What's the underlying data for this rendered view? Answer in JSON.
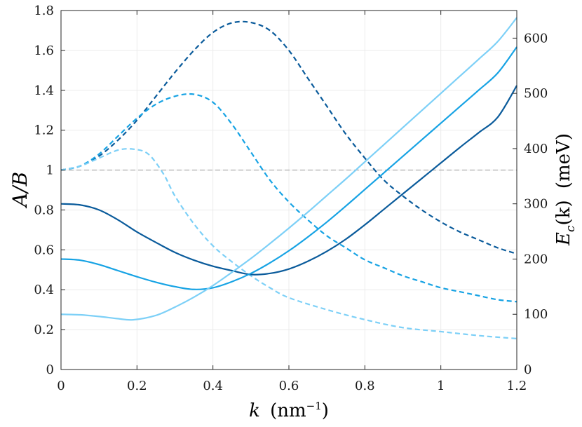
{
  "chart_data": {
    "type": "line",
    "xlabel_var": "k",
    "xlabel_unit_base": "(nm",
    "xlabel_unit_exp": "−1",
    "xlabel_unit_close": ")",
    "ylabel_left": "A/B",
    "ylabel_right_var": "E",
    "ylabel_right_sub": "c",
    "ylabel_right_rest": "(k)",
    "ylabel_right_unit": "(meV)",
    "xlim": [
      0,
      1.2
    ],
    "ylim_left": [
      0,
      1.8
    ],
    "ylim_right": [
      0,
      650
    ],
    "x_ticks": [
      0,
      0.2,
      0.4,
      0.6,
      0.8,
      1,
      1.2
    ],
    "x_tick_labels": [
      "0",
      "0.2",
      "0.4",
      "0.6",
      "0.8",
      "1",
      "1.2"
    ],
    "y_left_ticks": [
      0,
      0.2,
      0.4,
      0.6,
      0.8,
      1,
      1.2,
      1.4,
      1.6,
      1.8
    ],
    "y_left_tick_labels": [
      "0",
      "0.2",
      "0.4",
      "0.6",
      "0.8",
      "1",
      "1.2",
      "1.4",
      "1.6",
      "1.8"
    ],
    "y_right_ticks": [
      0,
      100,
      200,
      300,
      400,
      500,
      600
    ],
    "y_right_tick_labels": [
      "0",
      "100",
      "200",
      "300",
      "400",
      "500",
      "600"
    ],
    "grid": true,
    "reference_line": {
      "axis": "left",
      "y": 1.0,
      "color": "#b3b3b3",
      "style": "dashed"
    },
    "series": [
      {
        "axis": "left",
        "style": "dashed",
        "color": "#0a5b9b",
        "x": [
          0,
          0.05,
          0.1,
          0.15,
          0.2,
          0.25,
          0.3,
          0.35,
          0.4,
          0.45,
          0.5,
          0.55,
          0.6,
          0.65,
          0.7,
          0.75,
          0.8,
          0.85,
          0.9,
          0.95,
          1.0,
          1.05,
          1.1,
          1.15,
          1.2
        ],
        "y": [
          1.0,
          1.02,
          1.07,
          1.15,
          1.25,
          1.37,
          1.49,
          1.6,
          1.69,
          1.738,
          1.74,
          1.7,
          1.6,
          1.46,
          1.32,
          1.18,
          1.06,
          0.95,
          0.87,
          0.8,
          0.74,
          0.69,
          0.65,
          0.61,
          0.58
        ]
      },
      {
        "axis": "left",
        "style": "dashed",
        "color": "#17a3e4",
        "x": [
          0,
          0.05,
          0.1,
          0.15,
          0.2,
          0.25,
          0.3,
          0.35,
          0.4,
          0.45,
          0.5,
          0.55,
          0.6,
          0.65,
          0.7,
          0.75,
          0.8,
          0.85,
          0.9,
          0.95,
          1.0,
          1.05,
          1.1,
          1.15,
          1.2
        ],
        "y": [
          1.0,
          1.02,
          1.08,
          1.17,
          1.26,
          1.33,
          1.37,
          1.38,
          1.34,
          1.23,
          1.09,
          0.95,
          0.84,
          0.75,
          0.67,
          0.61,
          0.55,
          0.51,
          0.47,
          0.44,
          0.41,
          0.39,
          0.37,
          0.35,
          0.34
        ]
      },
      {
        "axis": "left",
        "style": "dashed",
        "color": "#7dd0f7",
        "x": [
          0,
          0.05,
          0.1,
          0.15,
          0.19,
          0.23,
          0.27,
          0.3,
          0.35,
          0.4,
          0.45,
          0.5,
          0.55,
          0.6,
          0.7,
          0.8,
          0.9,
          1.0,
          1.1,
          1.2
        ],
        "y": [
          1.0,
          1.02,
          1.06,
          1.1,
          1.105,
          1.08,
          0.98,
          0.87,
          0.73,
          0.62,
          0.54,
          0.47,
          0.41,
          0.36,
          0.3,
          0.25,
          0.21,
          0.19,
          0.17,
          0.155
        ]
      },
      {
        "axis": "right",
        "style": "solid",
        "color": "#0a5b9b",
        "x": [
          0,
          0.05,
          0.1,
          0.15,
          0.2,
          0.25,
          0.3,
          0.35,
          0.4,
          0.45,
          0.5,
          0.55,
          0.6,
          0.65,
          0.7,
          0.75,
          0.8,
          0.85,
          0.9,
          0.95,
          1.0,
          1.05,
          1.1,
          1.15,
          1.2
        ],
        "y": [
          300,
          298,
          289,
          271,
          249,
          230,
          212,
          198,
          187,
          179,
          172,
          174,
          182,
          196,
          214,
          236,
          262,
          290,
          318,
          346,
          374,
          402,
          429,
          457,
          514
        ]
      },
      {
        "axis": "right",
        "style": "solid",
        "color": "#17a3e4",
        "x": [
          0,
          0.05,
          0.1,
          0.15,
          0.2,
          0.25,
          0.3,
          0.35,
          0.4,
          0.45,
          0.5,
          0.55,
          0.6,
          0.65,
          0.7,
          0.75,
          0.8,
          0.85,
          0.9,
          0.95,
          1.0,
          1.05,
          1.1,
          1.15,
          1.2
        ],
        "y": [
          200,
          198,
          190,
          179,
          168,
          158,
          150,
          145,
          148,
          159,
          174,
          193,
          215,
          240,
          267,
          296,
          326,
          356,
          386,
          416,
          446,
          476,
          506,
          537,
          584
        ]
      },
      {
        "axis": "right",
        "style": "solid",
        "color": "#7dd0f7",
        "x": [
          0,
          0.05,
          0.1,
          0.15,
          0.19,
          0.25,
          0.3,
          0.35,
          0.4,
          0.45,
          0.5,
          0.55,
          0.6,
          0.65,
          0.7,
          0.75,
          0.8,
          0.85,
          0.9,
          0.95,
          1.0,
          1.05,
          1.1,
          1.15,
          1.2
        ],
        "y": [
          100,
          99,
          96,
          92,
          90,
          98,
          113,
          131,
          152,
          176,
          201,
          228,
          256,
          285,
          315,
          345,
          376,
          407,
          438,
          469,
          500,
          531,
          562,
          594,
          637
        ]
      }
    ]
  }
}
